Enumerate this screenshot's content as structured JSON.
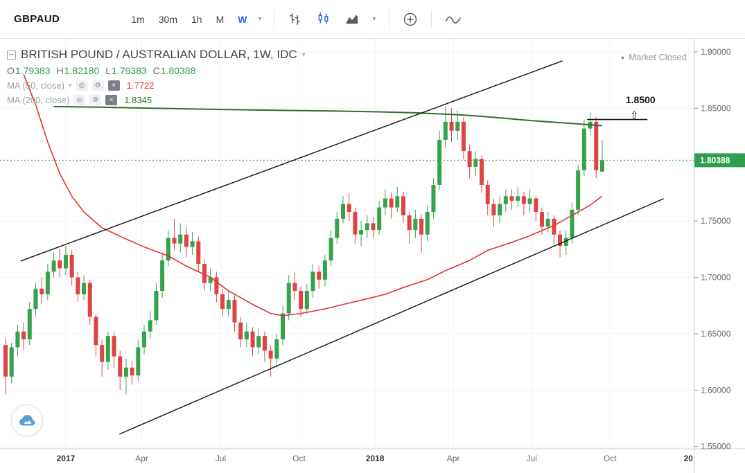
{
  "toolbar": {
    "symbol": "GBPAUD",
    "intervals": [
      "1m",
      "30m",
      "1h",
      "M",
      "W"
    ],
    "active_interval": "W"
  },
  "icons": {
    "chevron_down": "▾",
    "bullet": "●",
    "eye": "◎",
    "settings": "⚙",
    "close": "×",
    "arrow_up": "⇧"
  },
  "legend": {
    "title": "BRITISH POUND / AUSTRALIAN DOLLAR, 1W, IDC",
    "market_status": "Market Closed",
    "ohlc": [
      {
        "label": "O",
        "value": "1.79383"
      },
      {
        "label": "H",
        "value": "1.82180"
      },
      {
        "label": "L",
        "value": "1.79383"
      },
      {
        "label": "C",
        "value": "1.80388"
      }
    ],
    "indicators": [
      {
        "label": "MA (50, close)",
        "value": "1.7722"
      },
      {
        "label": "MA (200, close)",
        "value": "1.8345"
      }
    ]
  },
  "price_scale": {
    "current_tag": "1.80388"
  },
  "chart_data": {
    "type": "candlestick",
    "title": "BRITISH POUND / AUSTRALIAN DOLLAR, 1W, IDC",
    "symbol": "GBPAUD",
    "timeframe": "1W",
    "exchange": "IDC",
    "legend_position": "top-left",
    "grid": "faint",
    "up_color": "#35a24c",
    "down_color": "#e04343",
    "current_price": 1.80388,
    "current_price_color": "#2f9e4f",
    "ohlc_current": {
      "open": 1.79383,
      "high": 1.8218,
      "low": 1.79383,
      "close": 1.80388
    },
    "xlim": [
      -0.92,
      114.3
    ],
    "ylim": [
      1.548,
      1.911
    ],
    "y_ticks": [
      {
        "label": "1.90000",
        "value": 1.9
      },
      {
        "label": "1.85000",
        "value": 1.85
      },
      {
        "label": "1.80000",
        "value": 1.8
      },
      {
        "label": "1.75000",
        "value": 1.75
      },
      {
        "label": "1.70000",
        "value": 1.7
      },
      {
        "label": "1.65000",
        "value": 1.65
      },
      {
        "label": "1.60000",
        "value": 1.6
      },
      {
        "label": "1.55000",
        "value": 1.55
      }
    ],
    "x_ticks": [
      {
        "label": "2017",
        "week": 10,
        "year": true
      },
      {
        "label": "Apr",
        "week": 22.6,
        "year": false
      },
      {
        "label": "Jul",
        "week": 35.7,
        "year": false
      },
      {
        "label": "Oct",
        "week": 48.7,
        "year": false
      },
      {
        "label": "2018",
        "week": 61.3,
        "year": true
      },
      {
        "label": "Apr",
        "week": 74.3,
        "year": false
      },
      {
        "label": "Jul",
        "week": 87.3,
        "year": false
      },
      {
        "label": "Oct",
        "week": 100.3,
        "year": false
      },
      {
        "label": "20",
        "week": 113.3,
        "year": true
      }
    ],
    "candles": [
      [
        1.64,
        1.646,
        1.596,
        1.612
      ],
      [
        1.612,
        1.642,
        1.606,
        1.638
      ],
      [
        1.638,
        1.658,
        1.63,
        1.652
      ],
      [
        1.652,
        1.66,
        1.635,
        1.645
      ],
      [
        1.645,
        1.678,
        1.64,
        1.672
      ],
      [
        1.672,
        1.695,
        1.665,
        1.69
      ],
      [
        1.69,
        1.7,
        1.676,
        1.685
      ],
      [
        1.685,
        1.712,
        1.68,
        1.705
      ],
      [
        1.705,
        1.722,
        1.7,
        1.715
      ],
      [
        1.715,
        1.725,
        1.7,
        1.708
      ],
      [
        1.708,
        1.728,
        1.702,
        1.72
      ],
      [
        1.72,
        1.724,
        1.693,
        1.7
      ],
      [
        1.7,
        1.705,
        1.678,
        1.685
      ],
      [
        1.685,
        1.702,
        1.68,
        1.695
      ],
      [
        1.695,
        1.698,
        1.658,
        1.665
      ],
      [
        1.665,
        1.668,
        1.63,
        1.64
      ],
      [
        1.64,
        1.645,
        1.612,
        1.625
      ],
      [
        1.625,
        1.652,
        1.618,
        1.648
      ],
      [
        1.648,
        1.652,
        1.62,
        1.63
      ],
      [
        1.63,
        1.635,
        1.6,
        1.612
      ],
      [
        1.612,
        1.628,
        1.596,
        1.62
      ],
      [
        1.62,
        1.626,
        1.605,
        1.613
      ],
      [
        1.613,
        1.645,
        1.608,
        1.638
      ],
      [
        1.638,
        1.658,
        1.632,
        1.652
      ],
      [
        1.652,
        1.67,
        1.645,
        1.662
      ],
      [
        1.662,
        1.695,
        1.658,
        1.688
      ],
      [
        1.688,
        1.722,
        1.682,
        1.715
      ],
      [
        1.715,
        1.742,
        1.71,
        1.735
      ],
      [
        1.735,
        1.752,
        1.724,
        1.73
      ],
      [
        1.73,
        1.748,
        1.722,
        1.738
      ],
      [
        1.738,
        1.744,
        1.718,
        1.727
      ],
      [
        1.727,
        1.74,
        1.72,
        1.732
      ],
      [
        1.732,
        1.736,
        1.705,
        1.712
      ],
      [
        1.712,
        1.716,
        1.688,
        1.695
      ],
      [
        1.695,
        1.708,
        1.688,
        1.7
      ],
      [
        1.7,
        1.705,
        1.678,
        1.685
      ],
      [
        1.685,
        1.69,
        1.665,
        1.672
      ],
      [
        1.672,
        1.688,
        1.665,
        1.68
      ],
      [
        1.68,
        1.684,
        1.652,
        1.66
      ],
      [
        1.66,
        1.665,
        1.638,
        1.645
      ],
      [
        1.645,
        1.66,
        1.638,
        1.652
      ],
      [
        1.652,
        1.656,
        1.63,
        1.638
      ],
      [
        1.638,
        1.655,
        1.632,
        1.648
      ],
      [
        1.648,
        1.652,
        1.625,
        1.635
      ],
      [
        1.635,
        1.64,
        1.612,
        1.628
      ],
      [
        1.628,
        1.65,
        1.62,
        1.645
      ],
      [
        1.645,
        1.675,
        1.64,
        1.668
      ],
      [
        1.668,
        1.702,
        1.662,
        1.695
      ],
      [
        1.695,
        1.705,
        1.68,
        1.688
      ],
      [
        1.688,
        1.692,
        1.665,
        1.672
      ],
      [
        1.672,
        1.694,
        1.668,
        1.688
      ],
      [
        1.688,
        1.712,
        1.682,
        1.705
      ],
      [
        1.705,
        1.71,
        1.69,
        1.698
      ],
      [
        1.698,
        1.72,
        1.692,
        1.715
      ],
      [
        1.715,
        1.742,
        1.71,
        1.735
      ],
      [
        1.735,
        1.758,
        1.73,
        1.752
      ],
      [
        1.752,
        1.772,
        1.748,
        1.765
      ],
      [
        1.765,
        1.775,
        1.75,
        1.758
      ],
      [
        1.758,
        1.762,
        1.73,
        1.738
      ],
      [
        1.738,
        1.75,
        1.728,
        1.742
      ],
      [
        1.742,
        1.755,
        1.735,
        1.748
      ],
      [
        1.748,
        1.754,
        1.735,
        1.742
      ],
      [
        1.742,
        1.768,
        1.738,
        1.762
      ],
      [
        1.762,
        1.778,
        1.755,
        1.77
      ],
      [
        1.77,
        1.775,
        1.752,
        1.762
      ],
      [
        1.762,
        1.78,
        1.758,
        1.772
      ],
      [
        1.772,
        1.776,
        1.748,
        1.755
      ],
      [
        1.755,
        1.758,
        1.73,
        1.742
      ],
      [
        1.742,
        1.76,
        1.735,
        1.752
      ],
      [
        1.752,
        1.756,
        1.722,
        1.738
      ],
      [
        1.738,
        1.764,
        1.732,
        1.758
      ],
      [
        1.758,
        1.788,
        1.752,
        1.782
      ],
      [
        1.782,
        1.83,
        1.778,
        1.822
      ],
      [
        1.822,
        1.852,
        1.815,
        1.838
      ],
      [
        1.838,
        1.85,
        1.82,
        1.83
      ],
      [
        1.83,
        1.848,
        1.822,
        1.838
      ],
      [
        1.838,
        1.842,
        1.805,
        1.812
      ],
      [
        1.812,
        1.818,
        1.788,
        1.798
      ],
      [
        1.798,
        1.812,
        1.79,
        1.805
      ],
      [
        1.805,
        1.808,
        1.775,
        1.782
      ],
      [
        1.782,
        1.786,
        1.755,
        1.765
      ],
      [
        1.765,
        1.77,
        1.745,
        1.755
      ],
      [
        1.755,
        1.772,
        1.748,
        1.765
      ],
      [
        1.765,
        1.778,
        1.758,
        1.772
      ],
      [
        1.772,
        1.778,
        1.76,
        1.768
      ],
      [
        1.768,
        1.78,
        1.762,
        1.772
      ],
      [
        1.772,
        1.776,
        1.755,
        1.765
      ],
      [
        1.765,
        1.778,
        1.758,
        1.77
      ],
      [
        1.77,
        1.772,
        1.75,
        1.758
      ],
      [
        1.758,
        1.762,
        1.738,
        1.745
      ],
      [
        1.745,
        1.758,
        1.74,
        1.752
      ],
      [
        1.752,
        1.755,
        1.728,
        1.738
      ],
      [
        1.738,
        1.742,
        1.718,
        1.728
      ],
      [
        1.728,
        1.742,
        1.72,
        1.735
      ],
      [
        1.735,
        1.766,
        1.73,
        1.76
      ],
      [
        1.76,
        1.8,
        1.755,
        1.795
      ],
      [
        1.795,
        1.84,
        1.79,
        1.832
      ],
      [
        1.832,
        1.846,
        1.826,
        1.838
      ],
      [
        1.838,
        1.842,
        1.788,
        1.795
      ],
      [
        1.79383,
        1.8218,
        1.79383,
        1.80388
      ]
    ],
    "ma50": {
      "name": "MA (50, close)",
      "color": "#e82e2e",
      "current": 1.7722,
      "points": [
        [
          3,
          1.88
        ],
        [
          5,
          1.853
        ],
        [
          7,
          1.82
        ],
        [
          9,
          1.792
        ],
        [
          11,
          1.772
        ],
        [
          13,
          1.758
        ],
        [
          16,
          1.744
        ],
        [
          20,
          1.734
        ],
        [
          23,
          1.727
        ],
        [
          27,
          1.719
        ],
        [
          30,
          1.71
        ],
        [
          34,
          1.7
        ],
        [
          37,
          1.688
        ],
        [
          41,
          1.676
        ],
        [
          44,
          1.668
        ],
        [
          46,
          1.666
        ],
        [
          49,
          1.668
        ],
        [
          53,
          1.672
        ],
        [
          56,
          1.676
        ],
        [
          60,
          1.681
        ],
        [
          63,
          1.685
        ],
        [
          66,
          1.691
        ],
        [
          70,
          1.698
        ],
        [
          73,
          1.706
        ],
        [
          77,
          1.715
        ],
        [
          80,
          1.724
        ],
        [
          84,
          1.731
        ],
        [
          87,
          1.737
        ],
        [
          91,
          1.746
        ],
        [
          94,
          1.755
        ],
        [
          97,
          1.764
        ],
        [
          99,
          1.7722
        ]
      ]
    },
    "ma200": {
      "name": "MA (200, close)",
      "color": "#2d6e2d",
      "current": 1.8345,
      "points": [
        [
          8,
          1.8515
        ],
        [
          15,
          1.851
        ],
        [
          25,
          1.85
        ],
        [
          35,
          1.849
        ],
        [
          45,
          1.8482
        ],
        [
          55,
          1.8475
        ],
        [
          62,
          1.8468
        ],
        [
          68,
          1.846
        ],
        [
          72,
          1.845
        ],
        [
          75,
          1.8443
        ],
        [
          78,
          1.8432
        ],
        [
          82,
          1.8415
        ],
        [
          86,
          1.8396
        ],
        [
          90,
          1.838
        ],
        [
          94,
          1.8365
        ],
        [
          97,
          1.8353
        ],
        [
          99,
          1.8345
        ]
      ]
    },
    "trendlines": [
      {
        "x1": 2.5,
        "p1": 1.7145,
        "x2": 92.4,
        "p2": 1.892
      },
      {
        "x1": 18.9,
        "p1": 1.561,
        "x2": 109.2,
        "p2": 1.7698
      }
    ],
    "annotation": {
      "label": "1.8500",
      "arrow": "⇧",
      "line_price": 1.84,
      "line_from": 96.5,
      "line_to": 106.5,
      "label_week": 102.9,
      "label_price": 1.857
    }
  }
}
